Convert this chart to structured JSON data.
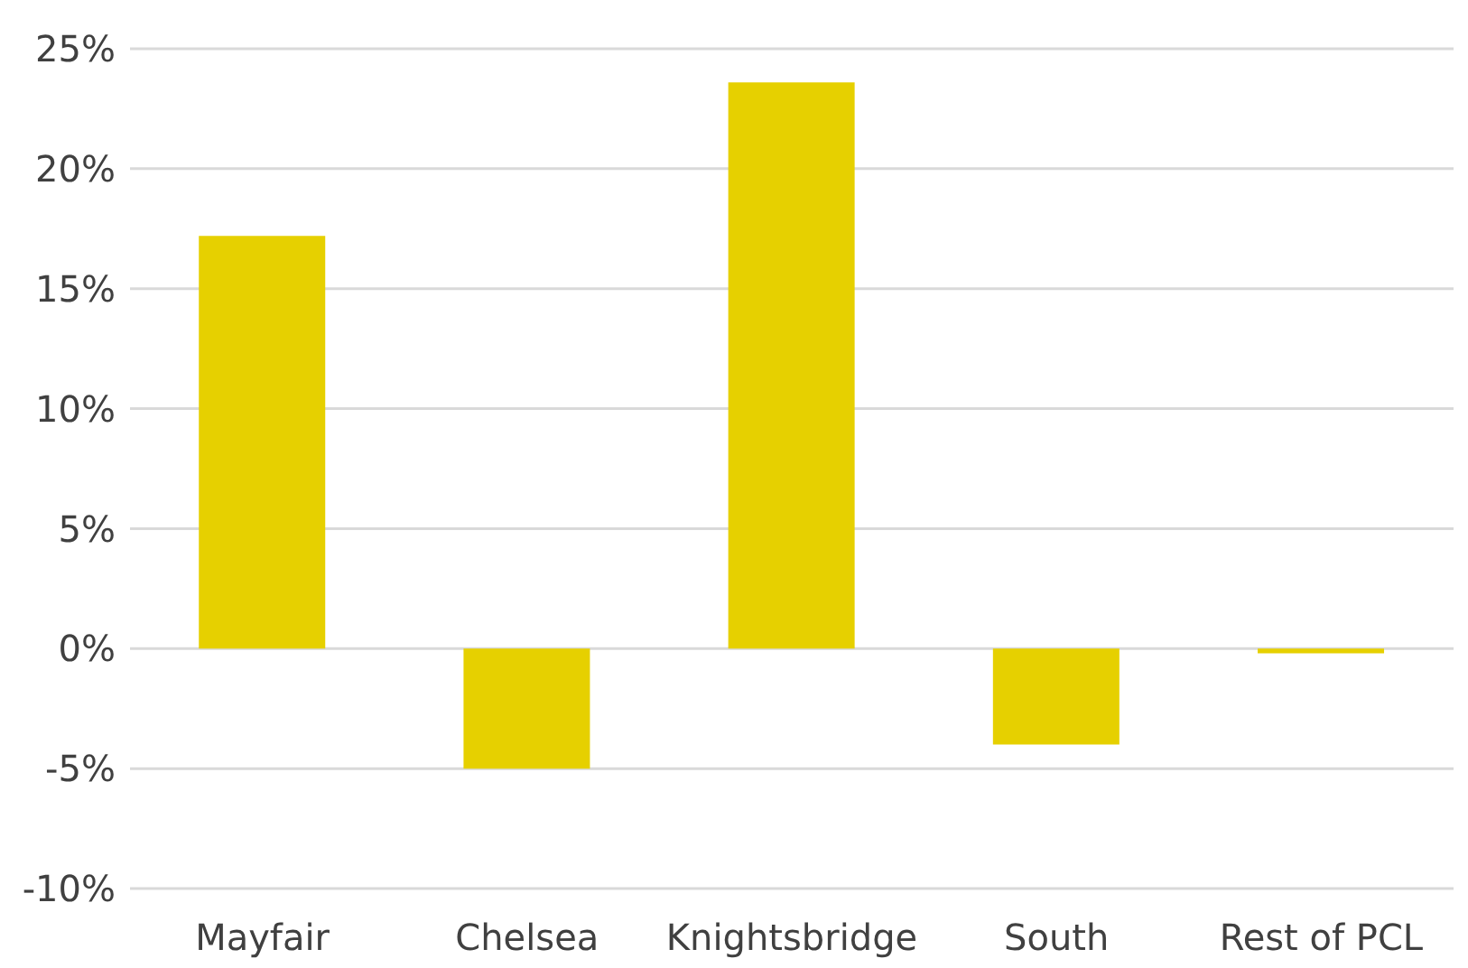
{
  "chart_data": {
    "type": "bar",
    "categories": [
      "Mayfair",
      "Chelsea",
      "Knightsbridge",
      "South",
      "Rest of PCL"
    ],
    "values": [
      17.2,
      -5.0,
      23.6,
      -4.0,
      -0.2
    ],
    "color": "#e6d000",
    "ylim": [
      -10,
      25
    ],
    "yticks": [
      {
        "value": -10,
        "label": "-10%"
      },
      {
        "value": -5,
        "label": "-5%"
      },
      {
        "value": 0,
        "label": "0%"
      },
      {
        "value": 5,
        "label": "5%"
      },
      {
        "value": 10,
        "label": "10%"
      },
      {
        "value": 15,
        "label": "15%"
      },
      {
        "value": 20,
        "label": "20%"
      },
      {
        "value": 25,
        "label": "25%"
      }
    ],
    "grid": "y"
  }
}
